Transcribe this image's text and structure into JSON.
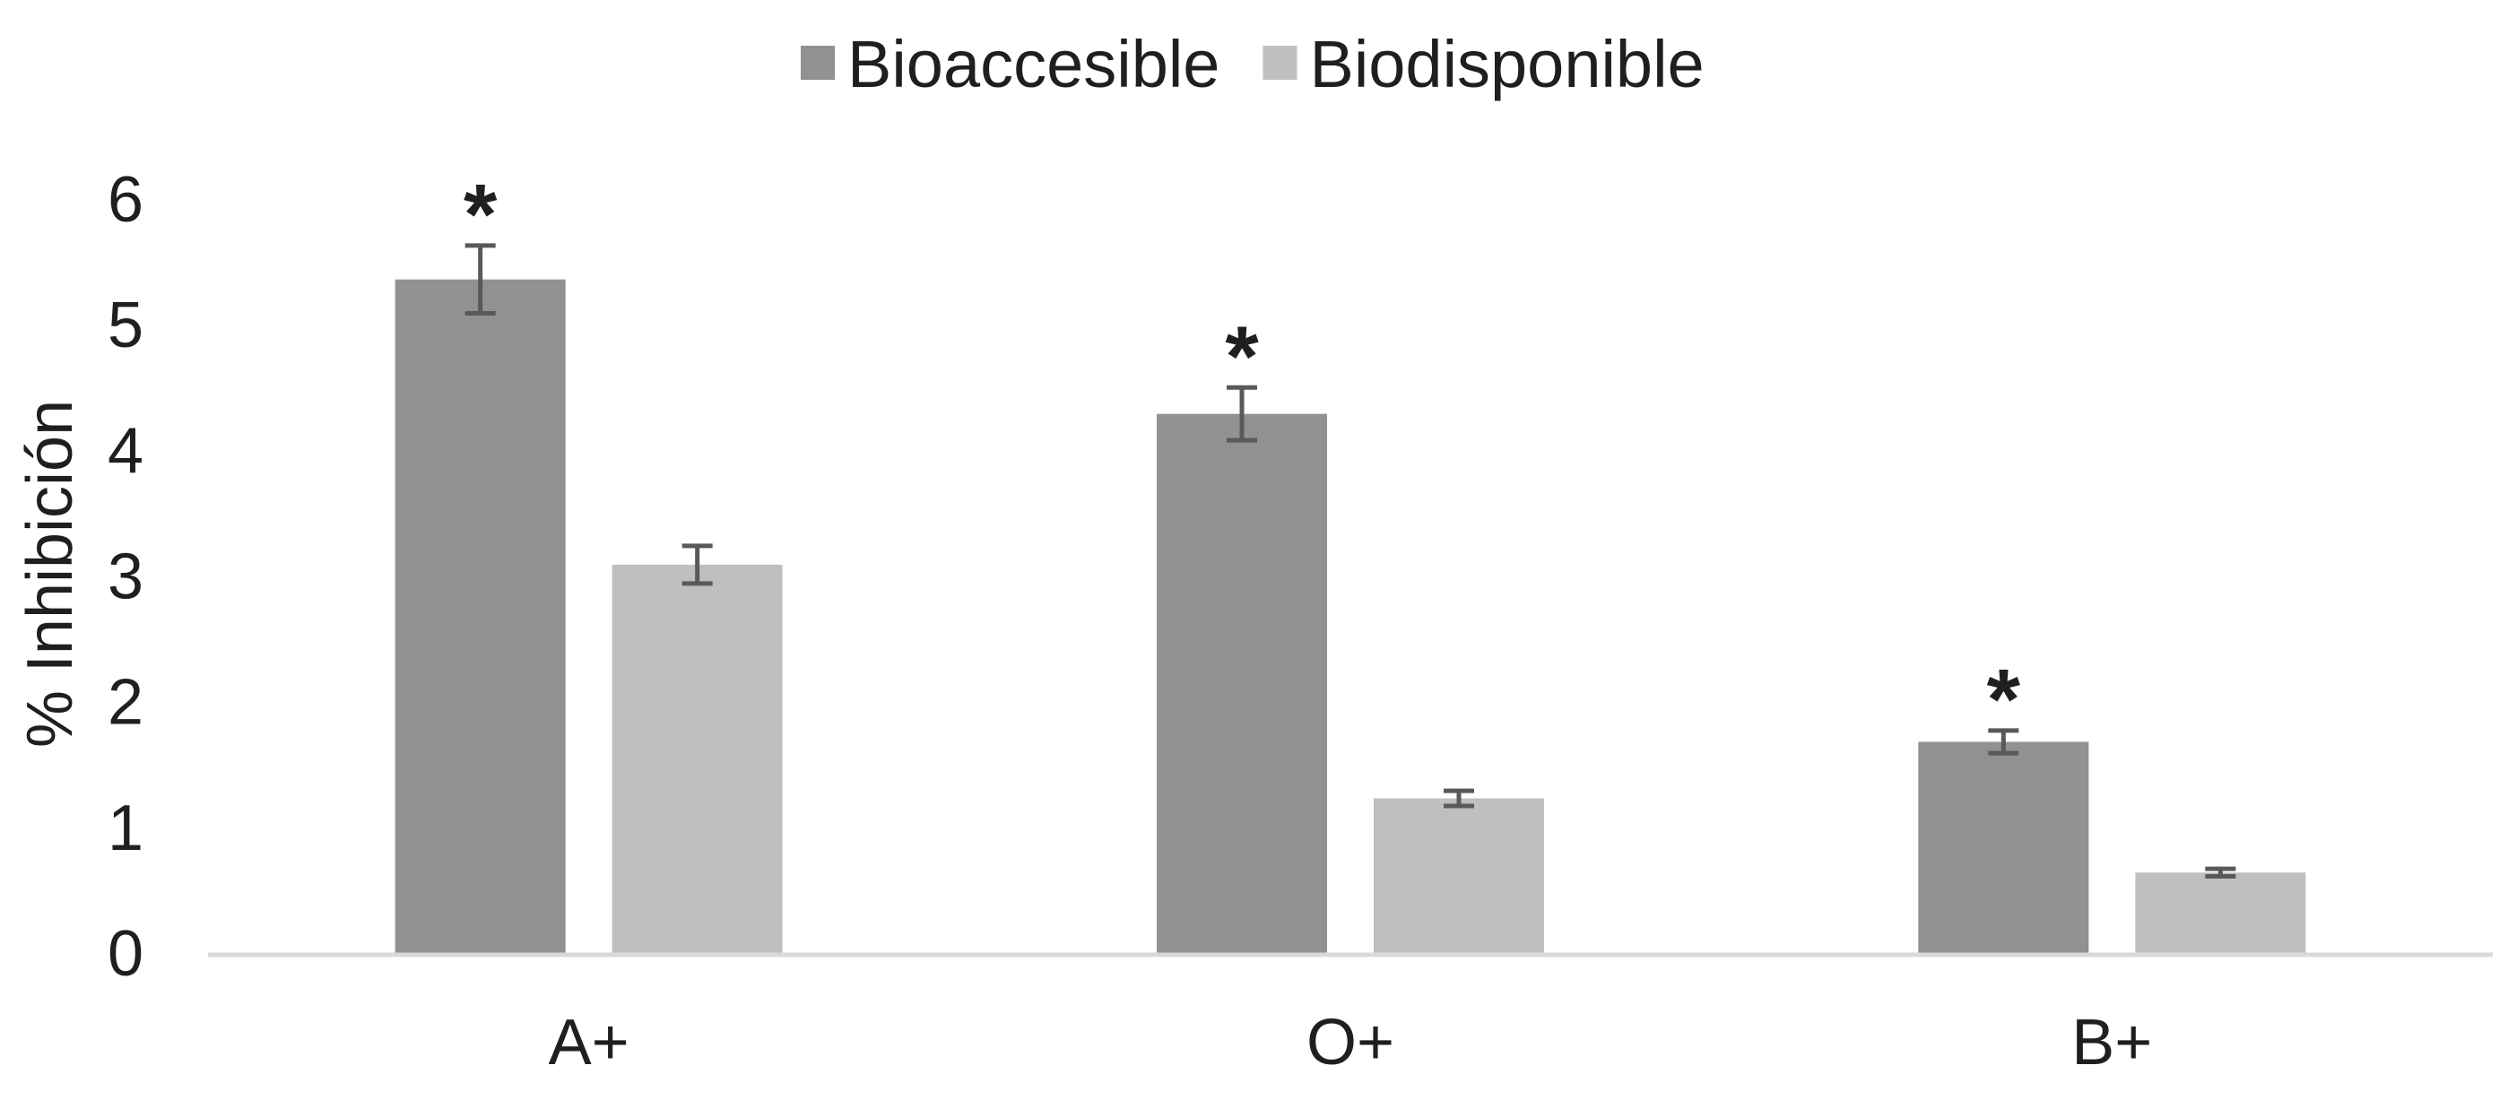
{
  "chart_data": {
    "type": "bar",
    "categories": [
      "A+",
      "O+",
      "B+"
    ],
    "series": [
      {
        "name": "Bioaccesible",
        "values": [
          5.36,
          4.29,
          1.68
        ],
        "errors": [
          0.27,
          0.21,
          0.09
        ],
        "color": "#919191",
        "marker": [
          "*",
          "*",
          "*"
        ]
      },
      {
        "name": "Biodisponible",
        "values": [
          3.09,
          1.23,
          0.64
        ],
        "errors": [
          0.15,
          0.06,
          0.03
        ],
        "color": "#bfbfbf",
        "marker": [
          "",
          "",
          ""
        ]
      }
    ],
    "xlabel": "",
    "ylabel": "% Inhibición",
    "ylim": [
      0,
      6
    ],
    "yticks": [
      0,
      1,
      2,
      3,
      4,
      5,
      6
    ],
    "grid": false,
    "legend": "top-center"
  }
}
